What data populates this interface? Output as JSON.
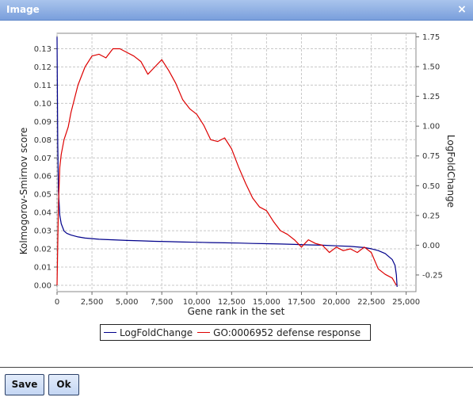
{
  "window": {
    "title": "Image",
    "close_glyph": "×"
  },
  "buttons": {
    "save": "Save",
    "ok": "Ok"
  },
  "chart_data": {
    "type": "line",
    "xlabel": "Gene rank in the set",
    "ylabel_left": "Kolmogorov-Smirnov score",
    "ylabel_right": "LogFoldChange",
    "x_ticks": [
      "0",
      "2,500",
      "5,000",
      "7,500",
      "10,000",
      "12,500",
      "15,000",
      "17,500",
      "20,000",
      "22,500",
      "25,000"
    ],
    "y_left_ticks": [
      "0.00",
      "0.01",
      "0.02",
      "0.03",
      "0.04",
      "0.05",
      "0.06",
      "0.07",
      "0.08",
      "0.09",
      "0.10",
      "0.11",
      "0.12",
      "0.13"
    ],
    "y_right_ticks": [
      "-0.25",
      "0.00",
      "0.25",
      "0.50",
      "0.75",
      "1.00",
      "1.25",
      "1.50",
      "1.75"
    ],
    "xlim": [
      0,
      25700
    ],
    "ylim_left": [
      -0.0035,
      0.1385
    ],
    "ylim_right": [
      -0.39,
      1.78
    ],
    "grid": true,
    "legend_placement": "bottom",
    "series": [
      {
        "name": "LogFoldChange",
        "axis": "right",
        "color": "#00008b",
        "x": [
          0,
          50,
          100,
          200,
          300,
          500,
          700,
          1000,
          1500,
          2000,
          2500,
          3000,
          4000,
          5000,
          6000,
          7000,
          8000,
          9000,
          10000,
          11000,
          12000,
          13000,
          14000,
          15000,
          16000,
          17000,
          18000,
          19000,
          20000,
          21000,
          22000,
          22500,
          23000,
          23500,
          24000,
          24200,
          24300,
          24350
        ],
        "y": [
          1.75,
          0.85,
          0.45,
          0.25,
          0.18,
          0.12,
          0.1,
          0.085,
          0.07,
          0.06,
          0.055,
          0.05,
          0.045,
          0.04,
          0.037,
          0.033,
          0.03,
          0.027,
          0.025,
          0.022,
          0.02,
          0.018,
          0.015,
          0.013,
          0.01,
          0.007,
          0.003,
          0.0,
          -0.005,
          -0.01,
          -0.02,
          -0.03,
          -0.045,
          -0.07,
          -0.12,
          -0.17,
          -0.25,
          -0.35
        ]
      },
      {
        "name": "GO:0006952 defense response",
        "axis": "left",
        "color": "#dd0000",
        "x": [
          0,
          100,
          200,
          300,
          500,
          800,
          1000,
          1500,
          2000,
          2500,
          3000,
          3500,
          4000,
          4500,
          5000,
          5500,
          6000,
          6500,
          7000,
          7500,
          8000,
          8500,
          9000,
          9500,
          10000,
          10500,
          11000,
          11500,
          12000,
          12500,
          13000,
          13500,
          14000,
          14500,
          15000,
          15500,
          16000,
          16500,
          17000,
          17500,
          18000,
          18500,
          19000,
          19500,
          20000,
          20500,
          21000,
          21500,
          22000,
          22500,
          23000,
          23500,
          24000,
          24300
        ],
        "y": [
          0.0,
          0.045,
          0.065,
          0.072,
          0.08,
          0.087,
          0.095,
          0.11,
          0.12,
          0.126,
          0.127,
          0.125,
          0.13,
          0.13,
          0.128,
          0.126,
          0.123,
          0.116,
          0.12,
          0.124,
          0.118,
          0.111,
          0.102,
          0.097,
          0.094,
          0.088,
          0.08,
          0.079,
          0.081,
          0.075,
          0.065,
          0.056,
          0.048,
          0.043,
          0.041,
          0.035,
          0.03,
          0.028,
          0.025,
          0.021,
          0.025,
          0.023,
          0.022,
          0.018,
          0.021,
          0.019,
          0.02,
          0.018,
          0.021,
          0.018,
          0.009,
          0.006,
          0.004,
          0.0
        ]
      }
    ]
  }
}
